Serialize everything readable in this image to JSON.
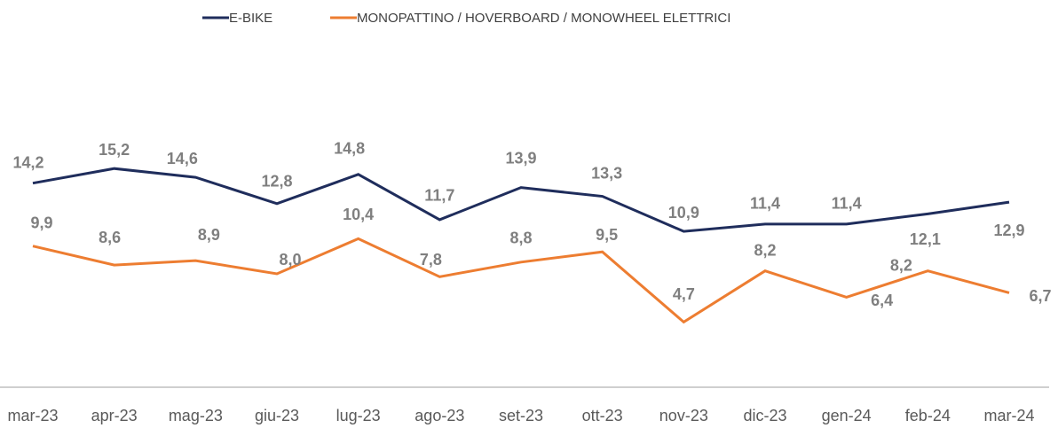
{
  "chart_data": {
    "type": "line",
    "categories": [
      "mar-23",
      "apr-23",
      "mag-23",
      "giu-23",
      "lug-23",
      "ago-23",
      "set-23",
      "ott-23",
      "nov-23",
      "dic-23",
      "gen-24",
      "feb-24",
      "mar-24"
    ],
    "series": [
      {
        "name": "E-BIKE",
        "color": "#1f2d5c",
        "values": [
          14.2,
          15.2,
          14.6,
          12.8,
          14.8,
          11.7,
          13.9,
          13.3,
          10.9,
          11.4,
          11.4,
          12.1,
          12.9
        ],
        "value_labels": [
          "14,2",
          "15,2",
          "14,6",
          "12,8",
          "14,8",
          "11,7",
          "13,9",
          "13,3",
          "10,9",
          "11,4",
          "11,4",
          "12,1",
          "12,9"
        ]
      },
      {
        "name": "MONOPATTINO / HOVERBOARD / MONOWHEEL ELETTRICI",
        "color": "#ed7d31",
        "values": [
          9.9,
          8.6,
          8.9,
          8.0,
          10.4,
          7.8,
          8.8,
          9.5,
          4.7,
          8.2,
          6.4,
          8.2,
          6.7
        ],
        "value_labels": [
          "9,9",
          "8,6",
          "8,9",
          "8,0",
          "10,4",
          "7,8",
          "8,8",
          "9,5",
          "4,7",
          "8,2",
          "6,4",
          "8,2",
          "6,7"
        ]
      }
    ],
    "ylim": [
      0,
      22
    ],
    "legend": "top"
  }
}
